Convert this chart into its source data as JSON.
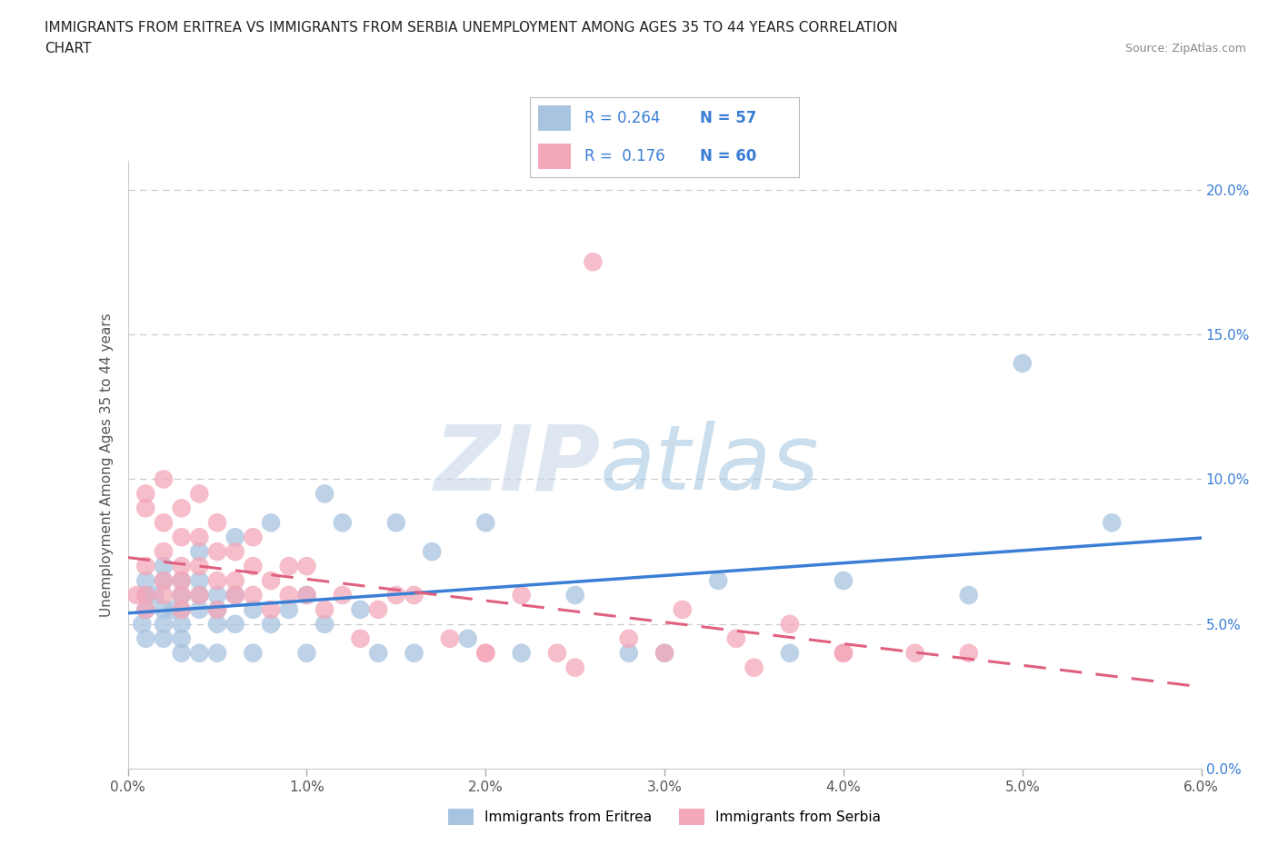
{
  "title_line1": "IMMIGRANTS FROM ERITREA VS IMMIGRANTS FROM SERBIA UNEMPLOYMENT AMONG AGES 35 TO 44 YEARS CORRELATION",
  "title_line2": "CHART",
  "source_text": "Source: ZipAtlas.com",
  "watermark": "ZIPatlas",
  "ylabel": "Unemployment Among Ages 35 to 44 years",
  "xlim": [
    0.0,
    0.06
  ],
  "ylim": [
    0.0,
    0.21
  ],
  "xticks": [
    0.0,
    0.01,
    0.02,
    0.03,
    0.04,
    0.05,
    0.06
  ],
  "xticklabels": [
    "0.0%",
    "1.0%",
    "2.0%",
    "3.0%",
    "4.0%",
    "5.0%",
    "6.0%"
  ],
  "yticks": [
    0.0,
    0.05,
    0.1,
    0.15,
    0.2
  ],
  "yticklabels": [
    "0.0%",
    "5.0%",
    "10.0%",
    "15.0%",
    "20.0%"
  ],
  "eritrea_color": "#a8c4e0",
  "serbia_color": "#f4a7b9",
  "eritrea_R": 0.264,
  "eritrea_N": 57,
  "serbia_R": 0.176,
  "serbia_N": 60,
  "legend_label_eritrea": "Immigrants from Eritrea",
  "legend_label_serbia": "Immigrants from Serbia",
  "trendline_eritrea_color": "#3a7fd5",
  "trendline_serbia_color": "#e06080",
  "r_n_color": "#3a7fd5",
  "title_color": "#222222",
  "ylabel_color": "#555555",
  "xtick_color": "#555555",
  "ytick_color": "#3a7fd5",
  "grid_color": "#cccccc",
  "source_color": "#888888",
  "eritrea_x": [
    0.0008,
    0.001,
    0.001,
    0.001,
    0.001,
    0.0015,
    0.002,
    0.002,
    0.002,
    0.002,
    0.002,
    0.0025,
    0.003,
    0.003,
    0.003,
    0.003,
    0.003,
    0.003,
    0.004,
    0.004,
    0.004,
    0.004,
    0.004,
    0.005,
    0.005,
    0.005,
    0.005,
    0.006,
    0.006,
    0.006,
    0.007,
    0.007,
    0.008,
    0.008,
    0.009,
    0.01,
    0.01,
    0.011,
    0.011,
    0.012,
    0.013,
    0.014,
    0.015,
    0.016,
    0.017,
    0.019,
    0.02,
    0.022,
    0.025,
    0.028,
    0.03,
    0.033,
    0.037,
    0.04,
    0.047,
    0.05,
    0.055
  ],
  "eritrea_y": [
    0.05,
    0.06,
    0.065,
    0.055,
    0.045,
    0.06,
    0.055,
    0.065,
    0.05,
    0.07,
    0.045,
    0.055,
    0.06,
    0.05,
    0.045,
    0.065,
    0.055,
    0.04,
    0.055,
    0.06,
    0.04,
    0.065,
    0.075,
    0.05,
    0.06,
    0.04,
    0.055,
    0.05,
    0.06,
    0.08,
    0.055,
    0.04,
    0.085,
    0.05,
    0.055,
    0.06,
    0.04,
    0.05,
    0.095,
    0.085,
    0.055,
    0.04,
    0.085,
    0.04,
    0.075,
    0.045,
    0.085,
    0.04,
    0.06,
    0.04,
    0.04,
    0.065,
    0.04,
    0.065,
    0.06,
    0.14,
    0.085
  ],
  "serbia_x": [
    0.0005,
    0.001,
    0.001,
    0.001,
    0.001,
    0.001,
    0.002,
    0.002,
    0.002,
    0.002,
    0.002,
    0.003,
    0.003,
    0.003,
    0.003,
    0.003,
    0.003,
    0.004,
    0.004,
    0.004,
    0.004,
    0.005,
    0.005,
    0.005,
    0.005,
    0.006,
    0.006,
    0.006,
    0.007,
    0.007,
    0.007,
    0.008,
    0.008,
    0.009,
    0.009,
    0.01,
    0.01,
    0.011,
    0.012,
    0.013,
    0.014,
    0.015,
    0.016,
    0.018,
    0.02,
    0.022,
    0.024,
    0.026,
    0.028,
    0.031,
    0.034,
    0.037,
    0.04,
    0.044,
    0.02,
    0.025,
    0.03,
    0.035,
    0.04,
    0.047
  ],
  "serbia_y": [
    0.06,
    0.07,
    0.06,
    0.055,
    0.09,
    0.095,
    0.065,
    0.075,
    0.06,
    0.1,
    0.085,
    0.06,
    0.055,
    0.07,
    0.08,
    0.065,
    0.09,
    0.06,
    0.08,
    0.07,
    0.095,
    0.055,
    0.065,
    0.075,
    0.085,
    0.06,
    0.075,
    0.065,
    0.06,
    0.07,
    0.08,
    0.055,
    0.065,
    0.06,
    0.07,
    0.06,
    0.07,
    0.055,
    0.06,
    0.045,
    0.055,
    0.06,
    0.06,
    0.045,
    0.04,
    0.06,
    0.04,
    0.175,
    0.045,
    0.055,
    0.045,
    0.05,
    0.04,
    0.04,
    0.04,
    0.035,
    0.04,
    0.035,
    0.04,
    0.04
  ]
}
